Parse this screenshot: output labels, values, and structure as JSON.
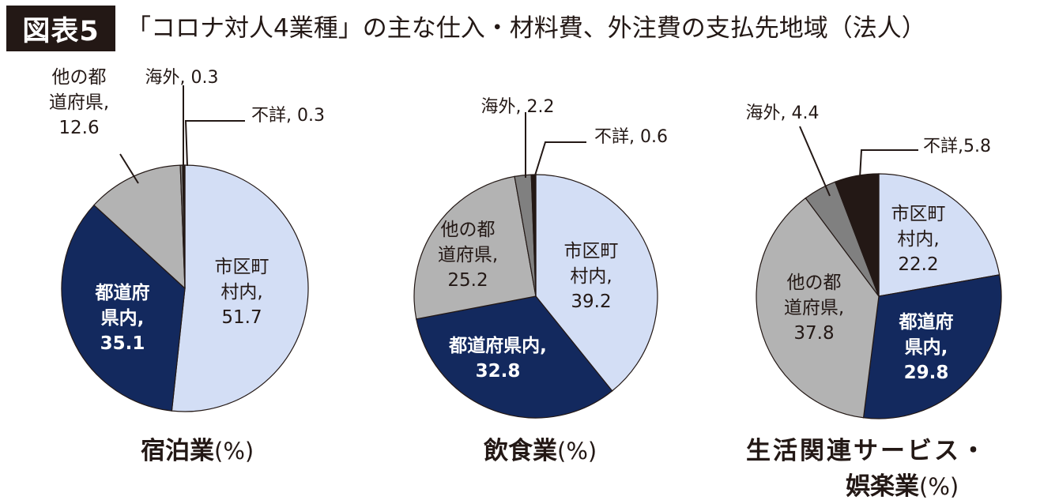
{
  "header": {
    "badge": "図表5",
    "title": "「コロナ対人4業種」の主な仕入・材料費、外注費の支払先地域（法人）"
  },
  "chart_data": [
    {
      "type": "pie",
      "title": "宿泊業",
      "unit": "(%)",
      "slices": [
        {
          "label": "市区町村内",
          "value": 51.7,
          "color": "#d3def5"
        },
        {
          "label": "都道府県内",
          "value": 35.1,
          "color": "#13295e"
        },
        {
          "label": "他の都道府県",
          "value": 12.6,
          "color": "#b3b3b3"
        },
        {
          "label": "海外",
          "value": 0.3,
          "color": "#808080"
        },
        {
          "label": "不詳",
          "value": 0.3,
          "color": "#231815"
        }
      ],
      "labels": {
        "s0": [
          "市区町",
          "村内,",
          "51.7"
        ],
        "s1": [
          "都道府",
          "県内,",
          "35.1"
        ],
        "s2": [
          "他の都",
          "道府県,",
          "12.6"
        ],
        "s3": "海外, 0.3",
        "s4": "不詳, 0.3"
      }
    },
    {
      "type": "pie",
      "title": "飲食業",
      "unit": "(%)",
      "slices": [
        {
          "label": "市区町村内",
          "value": 39.2,
          "color": "#d3def5"
        },
        {
          "label": "都道府県内",
          "value": 32.8,
          "color": "#13295e"
        },
        {
          "label": "他の都道府県",
          "value": 25.2,
          "color": "#b3b3b3"
        },
        {
          "label": "海外",
          "value": 2.2,
          "color": "#808080"
        },
        {
          "label": "不詳",
          "value": 0.6,
          "color": "#231815"
        }
      ],
      "labels": {
        "s0": [
          "市区町",
          "村内,",
          "39.2"
        ],
        "s1": [
          "都道府県内,",
          "32.8"
        ],
        "s2": [
          "他の都",
          "道府県,",
          "25.2"
        ],
        "s3": "海外, 2.2",
        "s4": "不詳, 0.6"
      }
    },
    {
      "type": "pie",
      "title": "生活関連サービス・娯楽業",
      "title_lines": [
        "生活関連サービス・",
        "娯楽業"
      ],
      "unit": "(%)",
      "slices": [
        {
          "label": "市区町村内",
          "value": 22.2,
          "color": "#d3def5"
        },
        {
          "label": "都道府県内",
          "value": 29.8,
          "color": "#13295e"
        },
        {
          "label": "他の都道府県",
          "value": 37.8,
          "color": "#b3b3b3"
        },
        {
          "label": "海外",
          "value": 4.4,
          "color": "#808080"
        },
        {
          "label": "不詳",
          "value": 5.8,
          "color": "#231815"
        }
      ],
      "labels": {
        "s0": [
          "市区町",
          "村内,",
          "22.2"
        ],
        "s1": [
          "都道府",
          "県内,",
          "29.8"
        ],
        "s2": [
          "他の都",
          "道府県,",
          "37.8"
        ],
        "s3": "海外, 4.4",
        "s4": "不詳,5.8"
      }
    }
  ]
}
